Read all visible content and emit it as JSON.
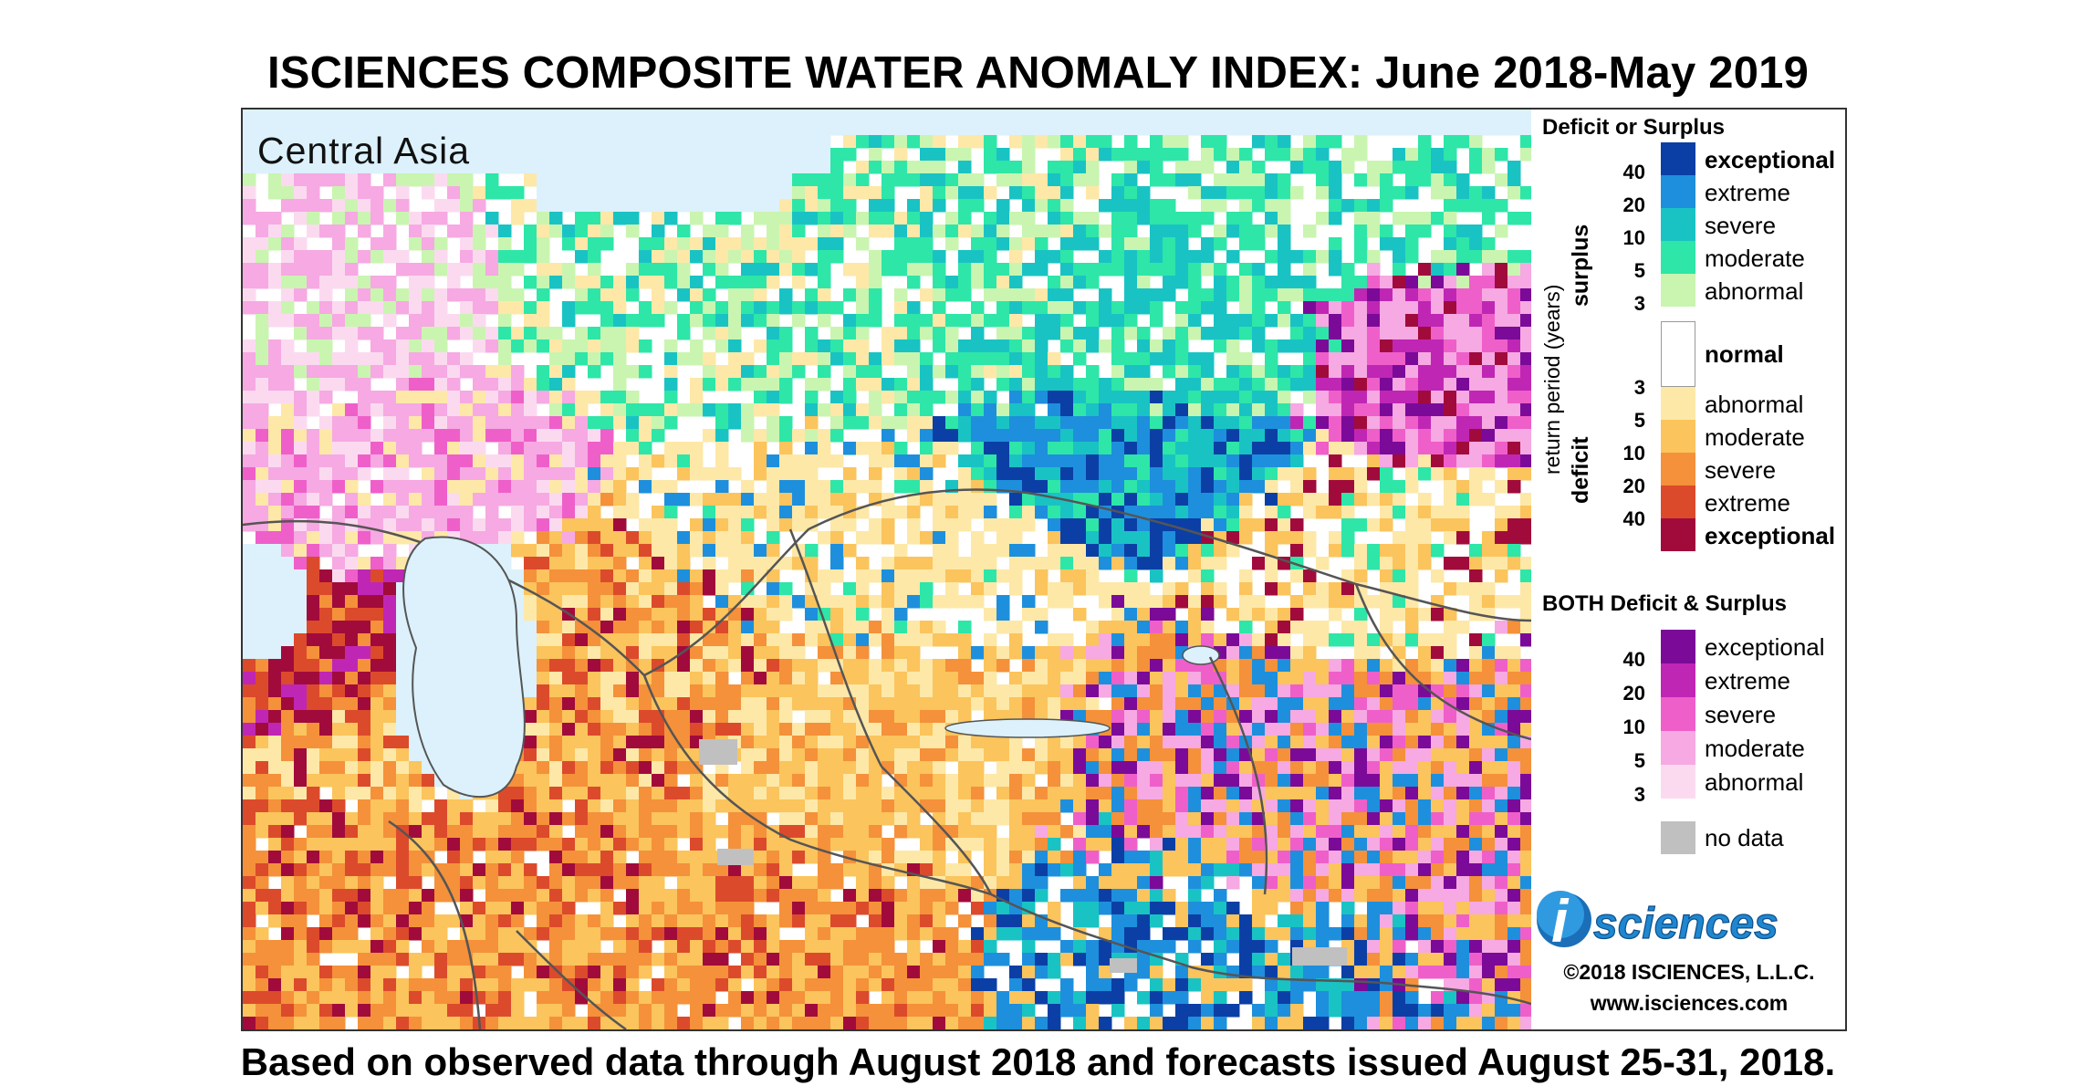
{
  "title": "ISCIENCES COMPOSITE WATER ANOMALY INDEX: June 2018-May 2019",
  "footer": "Based on observed data through August 2018 and forecasts issued August 25-31, 2018.",
  "map": {
    "region_label": "Central Asia",
    "colors": {
      "water": "#dcf1fb",
      "border": "#555555"
    }
  },
  "legend": {
    "deficit_surplus_title": "Deficit or Surplus",
    "axis_label": "return period (years)",
    "surplus_word": "surplus",
    "deficit_word": "deficit",
    "normal_label": "normal",
    "surplus_items": [
      {
        "label": "exceptional",
        "color": "#0b3fa6",
        "bold": true
      },
      {
        "label": "extreme",
        "color": "#1e8fdc",
        "bold": false
      },
      {
        "label": "severe",
        "color": "#19c3c3",
        "bold": false
      },
      {
        "label": "moderate",
        "color": "#2ee6a8",
        "bold": false
      },
      {
        "label": "abnormal",
        "color": "#c9f5b0",
        "bold": false
      }
    ],
    "surplus_ticks": [
      "40",
      "20",
      "10",
      "5",
      "3"
    ],
    "deficit_items": [
      {
        "label": "abnormal",
        "color": "#fde8a8",
        "bold": false
      },
      {
        "label": "moderate",
        "color": "#fbc45c",
        "bold": false
      },
      {
        "label": "severe",
        "color": "#f4913a",
        "bold": false
      },
      {
        "label": "extreme",
        "color": "#dc4a2c",
        "bold": false
      },
      {
        "label": "exceptional",
        "color": "#a10b3b",
        "bold": true
      }
    ],
    "deficit_ticks": [
      "3",
      "5",
      "10",
      "20",
      "40"
    ],
    "both_title": "BOTH Deficit & Surplus",
    "both_items": [
      {
        "label": "exceptional",
        "color": "#7b0a99"
      },
      {
        "label": "extreme",
        "color": "#c026b4"
      },
      {
        "label": "severe",
        "color": "#ef5fc9"
      },
      {
        "label": "moderate",
        "color": "#f6a9e2"
      },
      {
        "label": "abnormal",
        "color": "#fbdaf0"
      }
    ],
    "both_ticks": [
      "40",
      "20",
      "10",
      "5",
      "3"
    ],
    "no_data_label": "no data",
    "no_data_color": "#c0c0c0"
  },
  "branding": {
    "logo_letter": "i",
    "logo_word": "sciences",
    "copyright": "©2018 ISCIENCES, L.L.C.",
    "website": "www.isciences.com"
  }
}
